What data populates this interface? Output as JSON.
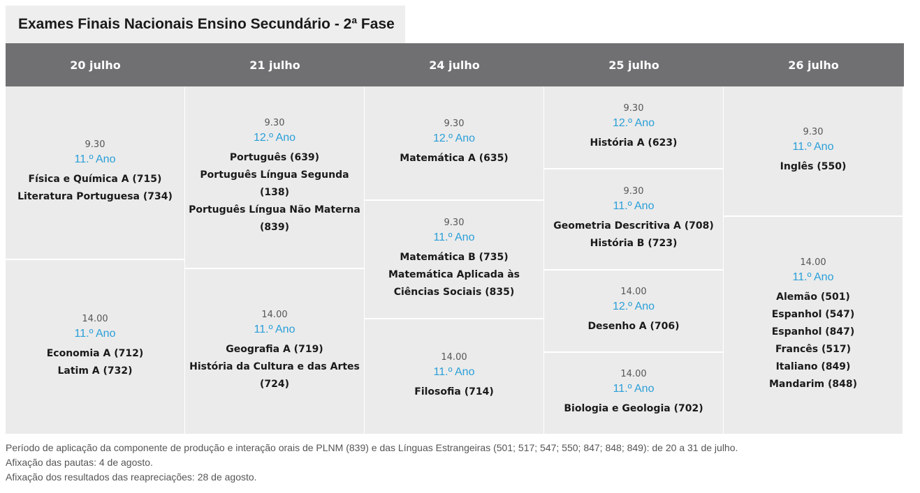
{
  "title": "Exames Finais Nacionais Ensino Secundário - 2ª Fase",
  "days": [
    "20 julho",
    "21 julho",
    "24 julho",
    "25 julho",
    "26 julho"
  ],
  "columns": [
    {
      "cells": [
        {
          "time": "9.30",
          "year": "11.º Ano",
          "exams": [
            "Física e Química A (715)",
            "Literatura Portuguesa (734)"
          ]
        },
        {
          "time": "14.00",
          "year": "11.º Ano",
          "exams": [
            "Economia A (712)",
            "Latim A (732)"
          ]
        }
      ]
    },
    {
      "cells": [
        {
          "time": "9.30",
          "year": "12.º Ano",
          "exams": [
            "Português (639)",
            "Português Língua Segunda (138)",
            "Português Língua Não Materna",
            "(839)"
          ]
        },
        {
          "time": "14.00",
          "year": "11.º Ano",
          "exams": [
            "Geografia A (719)",
            "História da Cultura e das Artes",
            "(724)"
          ]
        }
      ]
    },
    {
      "cells": [
        {
          "time": "9.30",
          "year": "12.º Ano",
          "exams": [
            "Matemática A (635)"
          ]
        },
        {
          "time": "9.30",
          "year": "11.º Ano",
          "exams": [
            "Matemática B (735)",
            "Matemática Aplicada às",
            "Ciências Sociais (835)"
          ]
        },
        {
          "time": "14.00",
          "year": "11.º Ano",
          "exams": [
            "Filosofia (714)"
          ]
        }
      ]
    },
    {
      "cells": [
        {
          "time": "9.30",
          "year": "12.º Ano",
          "exams": [
            "História A (623)"
          ]
        },
        {
          "time": "9.30",
          "year": "11.º Ano",
          "exams": [
            "Geometria Descritiva A (708)",
            "História B (723)"
          ]
        },
        {
          "time": "14.00",
          "year": "12.º Ano",
          "exams": [
            "Desenho A (706)"
          ]
        },
        {
          "time": "14.00",
          "year": "11.º Ano",
          "exams": [
            "Biologia e Geologia (702)"
          ]
        }
      ]
    },
    {
      "cells": [
        {
          "time": "9.30",
          "year": "11.º Ano",
          "exams": [
            "Inglês (550)"
          ]
        },
        {
          "time": "14.00",
          "year": "11.º Ano",
          "exams": [
            "Alemão (501)",
            "Espanhol (547)",
            "Espanhol (847)",
            "Francês (517)",
            "Italiano (849)",
            "Mandarim (848)"
          ]
        }
      ]
    }
  ],
  "notes": [
    "Período de aplicação da componente de produção e interação orais de PLNM (839) e das Línguas Estrangeiras (501; 517; 547; 550; 847; 848; 849): de 20 a 31 de julho.",
    "Afixação das pautas: 4 de agosto.",
    "Afixação dos resultados das reapreciações: 28 de agosto."
  ]
}
